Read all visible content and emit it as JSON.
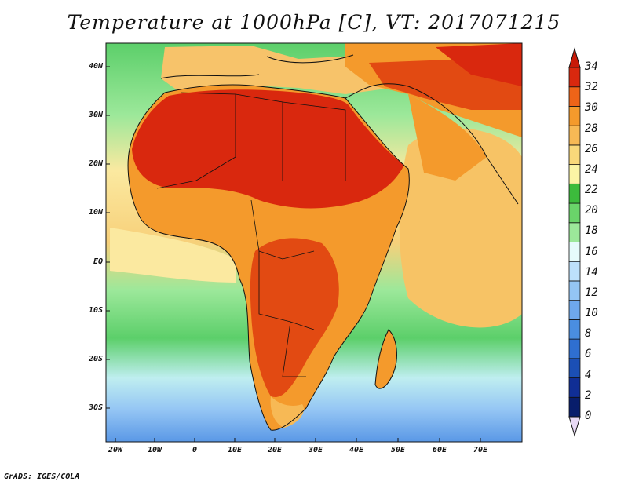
{
  "title": "Temperature at 1000hPa [C], VT: 2017071215",
  "credit": "GrADS: IGES/COLA",
  "map": {
    "lat_labels": [
      "40N",
      "30N",
      "20N",
      "10N",
      "EQ",
      "10S",
      "20S",
      "30S"
    ],
    "lon_labels": [
      "20W",
      "10W",
      "0",
      "10E",
      "20E",
      "30E",
      "40E",
      "50E",
      "60E",
      "70E"
    ]
  },
  "colorbar": {
    "labels": [
      "0",
      "2",
      "4",
      "6",
      "8",
      "10",
      "12",
      "14",
      "16",
      "18",
      "20",
      "22",
      "24",
      "26",
      "28",
      "30",
      "32",
      "34"
    ],
    "colors": [
      "#081d6b",
      "#102e95",
      "#1b4fb5",
      "#2f6fd0",
      "#4a8ee0",
      "#6ea8ec",
      "#94c5f4",
      "#bde0fb",
      "#e6fbfb",
      "#9ce89a",
      "#6ad46a",
      "#3cbb3c",
      "#fbf4a5",
      "#f9d87a",
      "#f7b955",
      "#f49a2c",
      "#ee6418",
      "#d9280e"
    ],
    "under_color": "#e8d9f5",
    "over_color": "#c81a08"
  }
}
